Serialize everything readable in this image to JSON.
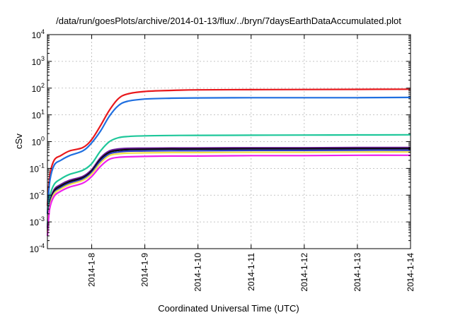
{
  "chart_data": {
    "type": "line",
    "title": "/data/run/goesPlots/archive/2014-01-13/flux/../bryn/7daysEarthDataAccumulated.plot",
    "xlabel": "Coordinated Universal Time (UTC)",
    "ylabel": "cSv",
    "x_range": [
      "2014-01-07T04:00",
      "2014-01-14T00:00"
    ],
    "x_ticks": [
      "2014-1-8",
      "2014-1-9",
      "2014-1-10",
      "2014-1-11",
      "2014-1-12",
      "2014-1-13",
      "2014-1-14"
    ],
    "y_scale": "log",
    "ylim": [
      0.0001,
      10000
    ],
    "y_ticks": [
      {
        "base": "10",
        "exp": "-4"
      },
      {
        "base": "10",
        "exp": "-3"
      },
      {
        "base": "10",
        "exp": "-2"
      },
      {
        "base": "10",
        "exp": "-1"
      },
      {
        "base": "10",
        "exp": "0"
      },
      {
        "base": "10",
        "exp": "1"
      },
      {
        "base": "10",
        "exp": "2"
      },
      {
        "base": "10",
        "exp": "3"
      },
      {
        "base": "10",
        "exp": "4"
      }
    ],
    "grid": true,
    "legend": "none",
    "series": [
      {
        "color": "#e8181c",
        "x": [
          "2014-01-07T04:00",
          "2014-01-07T05:00",
          "2014-01-07T07:00",
          "2014-01-07T10:00",
          "2014-01-07T14:00",
          "2014-01-07T20:00",
          "2014-01-08T00:00",
          "2014-01-08T04:00",
          "2014-01-08T08:00",
          "2014-01-08T12:00",
          "2014-01-08T16:00",
          "2014-01-09T00:00",
          "2014-01-09T12:00",
          "2014-01-10T00:00",
          "2014-01-11T00:00",
          "2014-01-12T00:00",
          "2014-01-13T00:00",
          "2014-01-14T00:00"
        ],
        "y": [
          0.004,
          0.05,
          0.2,
          0.3,
          0.45,
          0.6,
          1.2,
          4,
          15,
          40,
          60,
          75,
          82,
          86,
          88,
          89,
          90,
          91
        ]
      },
      {
        "color": "#1f6fe0",
        "x": [
          "2014-01-07T04:00",
          "2014-01-07T05:00",
          "2014-01-07T07:00",
          "2014-01-07T10:00",
          "2014-01-07T14:00",
          "2014-01-07T20:00",
          "2014-01-08T00:00",
          "2014-01-08T04:00",
          "2014-01-08T08:00",
          "2014-01-08T12:00",
          "2014-01-08T16:00",
          "2014-01-09T00:00",
          "2014-01-09T12:00",
          "2014-01-10T00:00",
          "2014-01-11T00:00",
          "2014-01-12T00:00",
          "2014-01-13T00:00",
          "2014-01-14T00:00"
        ],
        "y": [
          0.002,
          0.03,
          0.13,
          0.2,
          0.3,
          0.45,
          0.9,
          2.5,
          9,
          22,
          32,
          39,
          42,
          43,
          44,
          44,
          44,
          45
        ]
      },
      {
        "color": "#1ec79a",
        "x": [
          "2014-01-07T04:00",
          "2014-01-07T05:00",
          "2014-01-07T07:00",
          "2014-01-07T10:00",
          "2014-01-07T14:00",
          "2014-01-07T20:00",
          "2014-01-08T00:00",
          "2014-01-08T04:00",
          "2014-01-08T08:00",
          "2014-01-08T12:00",
          "2014-01-08T16:00",
          "2014-01-09T00:00",
          "2014-01-09T12:00",
          "2014-01-10T00:00",
          "2014-01-11T00:00",
          "2014-01-12T00:00",
          "2014-01-13T00:00",
          "2014-01-14T00:00"
        ],
        "y": [
          0.0008,
          0.008,
          0.025,
          0.04,
          0.06,
          0.085,
          0.15,
          0.45,
          1.0,
          1.4,
          1.55,
          1.65,
          1.7,
          1.72,
          1.74,
          1.76,
          1.78,
          1.8
        ]
      },
      {
        "color": "#6a1b9a",
        "x": [
          "2014-01-07T04:00",
          "2014-01-07T05:00",
          "2014-01-07T07:00",
          "2014-01-07T10:00",
          "2014-01-07T14:00",
          "2014-01-07T20:00",
          "2014-01-08T00:00",
          "2014-01-08T04:00",
          "2014-01-08T08:00",
          "2014-01-08T12:00",
          "2014-01-08T16:00",
          "2014-01-09T00:00",
          "2014-01-09T12:00",
          "2014-01-10T00:00",
          "2014-01-11T00:00",
          "2014-01-12T00:00",
          "2014-01-13T00:00",
          "2014-01-14T00:00"
        ],
        "y": [
          0.0006,
          0.005,
          0.016,
          0.025,
          0.036,
          0.05,
          0.09,
          0.25,
          0.45,
          0.53,
          0.56,
          0.57,
          0.58,
          0.58,
          0.59,
          0.59,
          0.6,
          0.6
        ]
      },
      {
        "color": "#0a0a0a",
        "x": [
          "2014-01-07T04:00",
          "2014-01-07T05:00",
          "2014-01-07T07:00",
          "2014-01-07T10:00",
          "2014-01-07T14:00",
          "2014-01-07T20:00",
          "2014-01-08T00:00",
          "2014-01-08T04:00",
          "2014-01-08T08:00",
          "2014-01-08T12:00",
          "2014-01-08T16:00",
          "2014-01-09T00:00",
          "2014-01-09T12:00",
          "2014-01-10T00:00",
          "2014-01-11T00:00",
          "2014-01-12T00:00",
          "2014-01-13T00:00",
          "2014-01-14T00:00"
        ],
        "y": [
          0.0005,
          0.0045,
          0.014,
          0.022,
          0.032,
          0.045,
          0.08,
          0.22,
          0.4,
          0.47,
          0.5,
          0.52,
          0.53,
          0.53,
          0.54,
          0.54,
          0.55,
          0.55
        ]
      },
      {
        "color": "#2b3cc4",
        "x": [
          "2014-01-07T04:00",
          "2014-01-07T05:00",
          "2014-01-07T07:00",
          "2014-01-07T10:00",
          "2014-01-07T14:00",
          "2014-01-07T20:00",
          "2014-01-08T00:00",
          "2014-01-08T04:00",
          "2014-01-08T08:00",
          "2014-01-08T12:00",
          "2014-01-08T16:00",
          "2014-01-09T00:00",
          "2014-01-09T12:00",
          "2014-01-10T00:00",
          "2014-01-11T00:00",
          "2014-01-12T00:00",
          "2014-01-13T00:00",
          "2014-01-14T00:00"
        ],
        "y": [
          0.00045,
          0.004,
          0.012,
          0.019,
          0.028,
          0.04,
          0.07,
          0.19,
          0.35,
          0.41,
          0.44,
          0.45,
          0.46,
          0.46,
          0.47,
          0.47,
          0.48,
          0.48
        ]
      },
      {
        "color": "#f2e14a",
        "x": [
          "2014-01-07T04:00",
          "2014-01-07T05:00",
          "2014-01-07T07:00",
          "2014-01-07T10:00",
          "2014-01-07T14:00",
          "2014-01-07T20:00",
          "2014-01-08T00:00",
          "2014-01-08T04:00",
          "2014-01-08T08:00",
          "2014-01-08T12:00",
          "2014-01-08T16:00",
          "2014-01-09T00:00",
          "2014-01-09T12:00",
          "2014-01-10T00:00",
          "2014-01-11T00:00",
          "2014-01-12T00:00",
          "2014-01-13T00:00",
          "2014-01-14T00:00"
        ],
        "y": [
          0.0004,
          0.0035,
          0.011,
          0.017,
          0.025,
          0.036,
          0.062,
          0.16,
          0.3,
          0.35,
          0.37,
          0.38,
          0.39,
          0.39,
          0.4,
          0.4,
          0.41,
          0.41
        ]
      },
      {
        "color": "#ee22ee",
        "x": [
          "2014-01-07T04:00",
          "2014-01-07T05:00",
          "2014-01-07T07:00",
          "2014-01-07T10:00",
          "2014-01-07T14:00",
          "2014-01-07T20:00",
          "2014-01-08T00:00",
          "2014-01-08T04:00",
          "2014-01-08T08:00",
          "2014-01-08T12:00",
          "2014-01-08T16:00",
          "2014-01-09T00:00",
          "2014-01-09T12:00",
          "2014-01-10T00:00",
          "2014-01-11T00:00",
          "2014-01-12T00:00",
          "2014-01-13T00:00",
          "2014-01-14T00:00"
        ],
        "y": [
          0.0003,
          0.003,
          0.009,
          0.014,
          0.02,
          0.028,
          0.05,
          0.12,
          0.22,
          0.26,
          0.27,
          0.28,
          0.29,
          0.29,
          0.3,
          0.3,
          0.31,
          0.31
        ]
      }
    ]
  }
}
